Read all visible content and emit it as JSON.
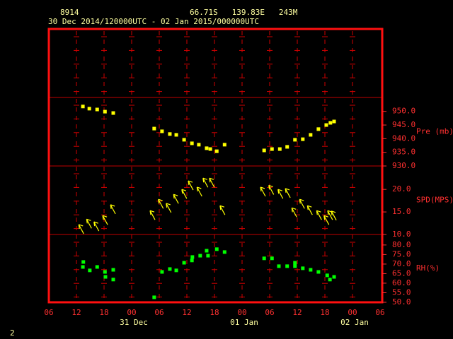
{
  "header": {
    "station": "8914",
    "location": "66.71S   139.83E   243M",
    "period": "30 Dec 2014/120000UTC - 02 Jan 2015/000000UTC",
    "footer": "2"
  },
  "chart_data": [
    {
      "type": "scatter",
      "y_label": "Pre (mb)",
      "color": "#ffff00",
      "ylim": [
        930,
        955.1
      ],
      "yticks": [
        {
          "value": 930,
          "label": "930.0"
        },
        {
          "value": 935,
          "label": "935.0"
        },
        {
          "value": 940,
          "label": "940.0"
        },
        {
          "value": 945,
          "label": "945.0"
        },
        {
          "value": 950,
          "label": "950.0"
        }
      ],
      "x": [
        7.4,
        8.8,
        10.5,
        12.2,
        14,
        22.9,
        24.6,
        26.3,
        27.7,
        29.4,
        31.1,
        32.6,
        34.3,
        35.1,
        36.5,
        38.2,
        46.8,
        48.5,
        50.2,
        51.8,
        53.5,
        55.2,
        56.9,
        58.6,
        60.3,
        61.2,
        62
      ],
      "values": [
        951.8,
        951,
        950.7,
        949.9,
        949.4,
        943.7,
        942.7,
        941.7,
        941.4,
        939.6,
        938.3,
        937.8,
        936.5,
        936.2,
        935.4,
        937.8,
        935.7,
        936.2,
        936.2,
        937,
        939.6,
        939.8,
        941.4,
        943.5,
        945,
        945.8,
        946.3
      ]
    },
    {
      "type": "arrow",
      "y_label": "SPD(MPS)",
      "color": "#ffff00",
      "ylim": [
        10,
        25.2
      ],
      "yticks": [
        {
          "value": 10,
          "label": "10.0"
        },
        {
          "value": 15,
          "label": "15.0"
        },
        {
          "value": 20,
          "label": "20.0"
        }
      ],
      "x": [
        6.5,
        8.2,
        9.8,
        11.7,
        13.4,
        22,
        23.8,
        25.5,
        27.1,
        28.9,
        30.3,
        32.2,
        33.5,
        34.9,
        37.2,
        46,
        47.8,
        49.8,
        51.4,
        52.8,
        54.5,
        56.2,
        58.2,
        59.8,
        60.6,
        61.4
      ],
      "values": [
        12.2,
        13.4,
        12.8,
        14.2,
        16.6,
        15.3,
        17.8,
        16.9,
        18.9,
        20,
        21.9,
        20.5,
        22.5,
        22.5,
        16.4,
        20.5,
        20.9,
        20,
        20.2,
        15.9,
        17.8,
        16.4,
        15.3,
        14.2,
        15.3,
        15.2
      ]
    },
    {
      "type": "scatter",
      "y_label": "RH(%)",
      "color": "#00ff00",
      "ylim": [
        50,
        85.5
      ],
      "yticks": [
        {
          "value": 50,
          "label": "50.0"
        },
        {
          "value": 55,
          "label": "55.0"
        },
        {
          "value": 60,
          "label": "60.0"
        },
        {
          "value": 65,
          "label": "65.0"
        },
        {
          "value": 70,
          "label": "70.0"
        },
        {
          "value": 75,
          "label": "75.0"
        },
        {
          "value": 80,
          "label": "80.0"
        }
      ],
      "x": [
        7.5,
        7.4,
        8.9,
        10.5,
        12.2,
        12.3,
        14,
        14,
        22.9,
        24.6,
        26.3,
        27.7,
        29.4,
        31.1,
        31.2,
        32.9,
        34.3,
        34.6,
        36.5,
        38.2,
        46.8,
        48.5,
        50,
        51.8,
        53.5,
        53.5,
        55.2,
        56.9,
        58.6,
        60.5,
        61.1,
        62
      ],
      "values": [
        71.1,
        68.5,
        66.7,
        68.5,
        65.9,
        63.3,
        67,
        61.9,
        52.6,
        65.9,
        67.4,
        66.7,
        70.7,
        71.9,
        73.7,
        74.4,
        77,
        74.4,
        77.8,
        76.3,
        73,
        73,
        68.9,
        68.9,
        70.7,
        68.9,
        67.8,
        67,
        65.9,
        64.1,
        61.9,
        63.3
      ],
      "xlim": [
        0,
        72
      ],
      "xticks": [
        {
          "value": 0,
          "label": "06"
        },
        {
          "value": 6,
          "label": "12"
        },
        {
          "value": 12,
          "label": "18"
        },
        {
          "value": 18,
          "label": "00"
        },
        {
          "value": 24,
          "label": "06"
        },
        {
          "value": 30,
          "label": "12"
        },
        {
          "value": 36,
          "label": "18"
        },
        {
          "value": 42,
          "label": "00"
        },
        {
          "value": 48,
          "label": "06"
        },
        {
          "value": 54,
          "label": "12"
        },
        {
          "value": 60,
          "label": "18"
        },
        {
          "value": 66,
          "label": "00"
        },
        {
          "value": 72,
          "label": "06"
        }
      ],
      "day_labels": [
        {
          "value": 18,
          "label": "31 Dec"
        },
        {
          "value": 42,
          "label": "01 Jan"
        },
        {
          "value": 66,
          "label": "02 Jan"
        }
      ]
    }
  ]
}
